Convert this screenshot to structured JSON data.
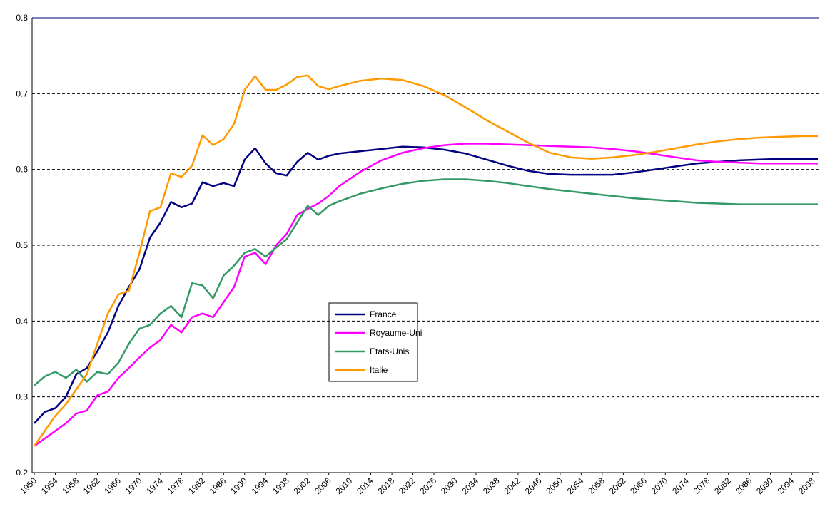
{
  "chart_data": {
    "type": "line",
    "x": [
      1950,
      1952,
      1954,
      1956,
      1958,
      1960,
      1962,
      1964,
      1966,
      1968,
      1970,
      1972,
      1974,
      1976,
      1978,
      1980,
      1982,
      1984,
      1986,
      1988,
      1990,
      1992,
      1994,
      1996,
      1998,
      2000,
      2002,
      2004,
      2006,
      2008,
      2012,
      2016,
      2020,
      2024,
      2028,
      2032,
      2036,
      2040,
      2044,
      2048,
      2052,
      2056,
      2060,
      2064,
      2068,
      2072,
      2076,
      2080,
      2084,
      2088,
      2092,
      2096,
      2099
    ],
    "series": [
      {
        "name": "France",
        "color": "#000080",
        "values": [
          0.265,
          0.28,
          0.285,
          0.3,
          0.33,
          0.338,
          0.36,
          0.385,
          0.42,
          0.445,
          0.468,
          0.51,
          0.53,
          0.557,
          0.55,
          0.555,
          0.583,
          0.578,
          0.582,
          0.578,
          0.613,
          0.628,
          0.608,
          0.595,
          0.592,
          0.61,
          0.622,
          0.613,
          0.618,
          0.621,
          0.624,
          0.627,
          0.63,
          0.629,
          0.626,
          0.621,
          0.613,
          0.605,
          0.598,
          0.594,
          0.593,
          0.593,
          0.593,
          0.596,
          0.6,
          0.604,
          0.608,
          0.61,
          0.612,
          0.613,
          0.614,
          0.614,
          0.614
        ]
      },
      {
        "name": "Royaume-Uni",
        "color": "#ff00ff",
        "values": [
          0.235,
          0.245,
          0.255,
          0.265,
          0.278,
          0.282,
          0.302,
          0.307,
          0.325,
          0.338,
          0.352,
          0.365,
          0.375,
          0.395,
          0.385,
          0.405,
          0.41,
          0.405,
          0.425,
          0.445,
          0.485,
          0.49,
          0.475,
          0.5,
          0.515,
          0.54,
          0.548,
          0.555,
          0.565,
          0.578,
          0.597,
          0.612,
          0.622,
          0.628,
          0.632,
          0.634,
          0.634,
          0.633,
          0.632,
          0.631,
          0.63,
          0.629,
          0.627,
          0.624,
          0.62,
          0.616,
          0.612,
          0.61,
          0.609,
          0.608,
          0.608,
          0.608,
          0.608
        ]
      },
      {
        "name": "Etats-Unis",
        "color": "#339966",
        "values": [
          0.315,
          0.327,
          0.333,
          0.325,
          0.336,
          0.32,
          0.333,
          0.33,
          0.345,
          0.37,
          0.39,
          0.395,
          0.41,
          0.42,
          0.405,
          0.45,
          0.447,
          0.43,
          0.46,
          0.473,
          0.49,
          0.495,
          0.485,
          0.497,
          0.508,
          0.53,
          0.552,
          0.54,
          0.552,
          0.558,
          0.568,
          0.575,
          0.581,
          0.585,
          0.587,
          0.587,
          0.585,
          0.582,
          0.578,
          0.574,
          0.571,
          0.568,
          0.565,
          0.562,
          0.56,
          0.558,
          0.556,
          0.555,
          0.554,
          0.554,
          0.554,
          0.554,
          0.554
        ]
      },
      {
        "name": "Italie",
        "color": "#ff9900",
        "values": [
          0.235,
          0.255,
          0.275,
          0.29,
          0.31,
          0.33,
          0.37,
          0.41,
          0.435,
          0.44,
          0.49,
          0.545,
          0.55,
          0.595,
          0.59,
          0.605,
          0.645,
          0.632,
          0.64,
          0.66,
          0.705,
          0.723,
          0.705,
          0.705,
          0.712,
          0.722,
          0.724,
          0.71,
          0.706,
          0.71,
          0.717,
          0.72,
          0.718,
          0.71,
          0.698,
          0.682,
          0.665,
          0.65,
          0.635,
          0.622,
          0.616,
          0.614,
          0.616,
          0.619,
          0.623,
          0.628,
          0.633,
          0.637,
          0.64,
          0.642,
          0.643,
          0.644,
          0.644
        ]
      }
    ],
    "xlim": [
      1950,
      2099
    ],
    "xticks": [
      1950,
      1954,
      1958,
      1962,
      1966,
      1970,
      1974,
      1978,
      1982,
      1986,
      1990,
      1994,
      1998,
      2002,
      2006,
      2010,
      2014,
      2018,
      2022,
      2026,
      2030,
      2034,
      2038,
      2042,
      2046,
      2050,
      2054,
      2058,
      2062,
      2066,
      2070,
      2074,
      2078,
      2082,
      2086,
      2090,
      2094,
      2098
    ],
    "ylim": [
      0.2,
      0.8
    ],
    "yticks": [
      0.2,
      0.3,
      0.4,
      0.5,
      0.6,
      0.7,
      0.8
    ],
    "grid": true
  }
}
